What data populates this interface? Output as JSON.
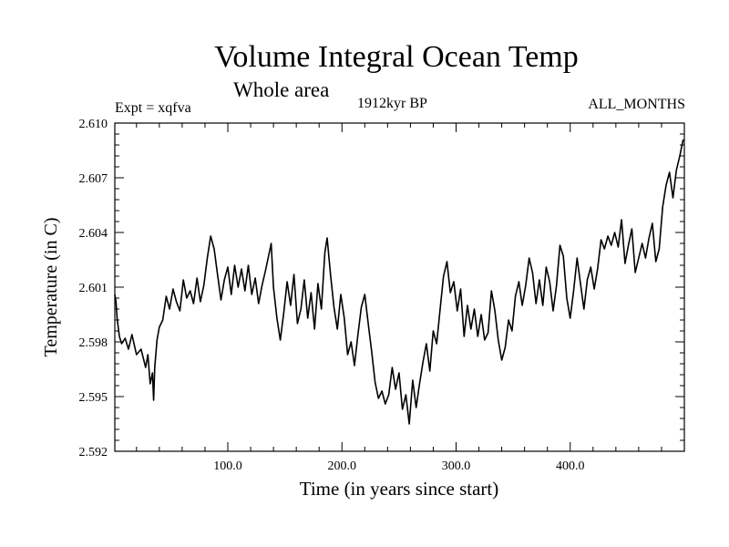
{
  "chart_data": {
    "type": "line",
    "title": "Volume Integral Ocean Temp",
    "subtitle": "Whole area",
    "experiment_label": "Expt = xqfva",
    "period_label": "1912kyr BP",
    "season_label": "ALL_MONTHS",
    "xlabel": "Time (in years since start)",
    "ylabel": "Temperature (in C)",
    "xlim": [
      1,
      500
    ],
    "ylim": [
      2.592,
      2.61
    ],
    "xticks": [
      100,
      200,
      300,
      400
    ],
    "xtick_labels": [
      "100.0",
      "200.0",
      "300.0",
      "400.0"
    ],
    "yticks": [
      2.592,
      2.595,
      2.598,
      2.601,
      2.604,
      2.607,
      2.61
    ],
    "ytick_labels": [
      "2.592",
      "2.595",
      "2.598",
      "2.601",
      "2.604",
      "2.607",
      "2.610"
    ],
    "grid": false,
    "legend": "none",
    "series": [
      {
        "name": "Volume integral ocean temperature",
        "x": [
          1,
          2,
          3,
          5,
          7,
          10,
          13,
          16,
          20,
          24,
          28,
          30,
          32,
          34,
          35,
          36,
          38,
          40,
          43,
          46,
          49,
          52,
          55,
          58,
          61,
          64,
          67,
          70,
          73,
          76,
          79,
          82,
          85,
          88,
          91,
          94,
          97,
          100,
          103,
          106,
          109,
          112,
          115,
          118,
          121,
          124,
          127,
          130,
          133,
          136,
          138,
          140,
          143,
          146,
          149,
          152,
          155,
          158,
          161,
          164,
          167,
          170,
          173,
          176,
          179,
          182,
          185,
          187,
          190,
          193,
          196,
          199,
          202,
          205,
          208,
          211,
          214,
          217,
          220,
          223,
          226,
          229,
          232,
          235,
          238,
          241,
          244,
          247,
          250,
          253,
          256,
          259,
          262,
          265,
          268,
          271,
          274,
          277,
          280,
          283,
          286,
          289,
          292,
          295,
          298,
          301,
          304,
          307,
          310,
          313,
          316,
          319,
          322,
          325,
          328,
          331,
          334,
          337,
          340,
          343,
          346,
          349,
          352,
          355,
          358,
          361,
          364,
          367,
          370,
          373,
          376,
          379,
          382,
          385,
          388,
          391,
          394,
          397,
          400,
          403,
          406,
          409,
          412,
          415,
          418,
          421,
          424,
          427,
          430,
          433,
          436,
          439,
          442,
          445,
          448,
          451,
          454,
          457,
          460,
          463,
          466,
          469,
          472,
          475,
          478,
          481,
          484,
          487,
          490,
          493,
          496,
          499
        ],
        "values": [
          2.6006,
          2.6002,
          2.5993,
          2.5983,
          2.5979,
          2.5982,
          2.5976,
          2.5984,
          2.5973,
          2.5976,
          2.5966,
          2.5973,
          2.5957,
          2.5963,
          2.5948,
          2.5966,
          2.5981,
          2.5988,
          2.5992,
          2.6005,
          2.5998,
          2.6009,
          2.6002,
          2.5997,
          2.6014,
          2.6004,
          2.6008,
          2.6001,
          2.6015,
          2.6002,
          2.6011,
          2.6026,
          2.6038,
          2.6031,
          2.6017,
          2.6003,
          2.6014,
          2.6021,
          2.6006,
          2.6022,
          2.601,
          2.602,
          2.6008,
          2.6022,
          2.6006,
          2.6015,
          2.6001,
          2.6011,
          2.6019,
          2.6028,
          2.6034,
          2.601,
          2.5993,
          2.5981,
          2.5996,
          2.6013,
          2.6,
          2.6017,
          2.599,
          2.5998,
          2.6014,
          2.5993,
          2.6007,
          2.5987,
          2.6012,
          2.5998,
          2.6029,
          2.6037,
          2.6017,
          2.5999,
          2.5987,
          2.6006,
          2.5993,
          2.5973,
          2.598,
          2.5967,
          2.5984,
          2.5999,
          2.6006,
          2.599,
          2.5975,
          2.5958,
          2.5949,
          2.5953,
          2.5946,
          2.5951,
          2.5966,
          2.5954,
          2.5963,
          2.5943,
          2.5951,
          2.5935,
          2.5959,
          2.5944,
          2.5957,
          2.5969,
          2.5979,
          2.5964,
          2.5986,
          2.5979,
          2.5998,
          2.6016,
          2.6024,
          2.6007,
          2.6013,
          2.5997,
          2.6009,
          2.5983,
          2.6,
          2.5987,
          2.5998,
          2.5983,
          2.5995,
          2.5981,
          2.5985,
          2.6008,
          2.5997,
          2.5981,
          2.597,
          2.5977,
          2.5992,
          2.5986,
          2.6005,
          2.6013,
          2.6,
          2.6011,
          2.6026,
          2.6018,
          2.6001,
          2.6014,
          2.6,
          2.6021,
          2.6013,
          2.5997,
          2.6011,
          2.6033,
          2.6027,
          2.6004,
          2.5993,
          2.6008,
          2.6026,
          2.6012,
          2.5998,
          2.6014,
          2.6021,
          2.6009,
          2.602,
          2.6036,
          2.6031,
          2.6038,
          2.6033,
          2.604,
          2.6032,
          2.6047,
          2.6023,
          2.6033,
          2.6042,
          2.6018,
          2.6026,
          2.6034,
          2.6026,
          2.6037,
          2.6045,
          2.6024,
          2.6031,
          2.6054,
          2.6066,
          2.6073,
          2.6059,
          2.6074,
          2.6082,
          2.6091
        ]
      }
    ]
  }
}
